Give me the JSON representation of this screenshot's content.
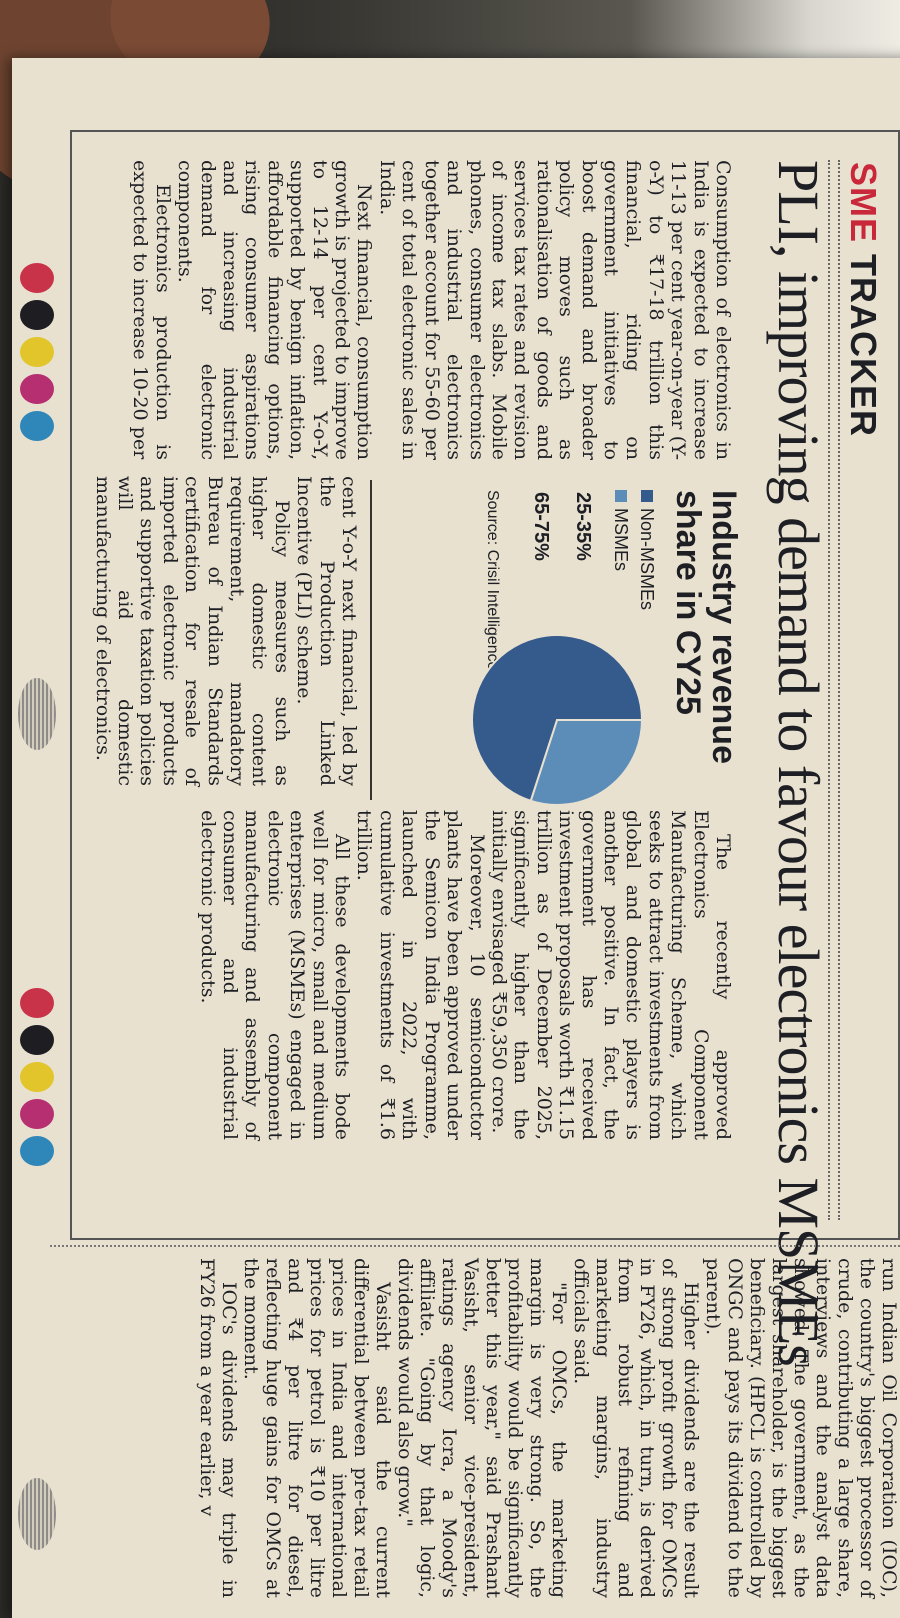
{
  "section_label": {
    "accent": "SME",
    "rest": " TRACKER"
  },
  "headline": "PLI, improving demand to favour electronics MSMEs",
  "column_a": [
    "Consumption of electronics in India is expected to increase 11-13 per cent year-on-year (Y-o-Y) to ₹17-18 trillion this financial, riding on government initiatives to boost demand and broader policy moves such as rationalisation of goods and services tax rates and revision of income tax slabs. Mobile phones, consumer electronics and industrial electronics together account for 55-60 per cent of total electronic sales in India.",
    "Next financial, consumption growth is projected to improve to 12-14 per cent Y-o-Y, supported by benign inflation, affordable financing options, rising consumer aspirations and increasing industrial demand for electronic components.",
    "Electronics production is expected to increase 10-20 per"
  ],
  "column_b": [
    "cent Y-o-Y next financial, led by the Production Linked Incentive (PLI) scheme.",
    "Policy measures such as higher domestic content requirement, mandatory Bureau of Indian Standards certification for resale of imported electronic products and supportive taxation policies will aid domestic manufacturing of electronics."
  ],
  "column_c": [
    "The recently approved Electronics Component Manufacturing Scheme, which seeks to attract investments from global and domestic players is another positive. In fact, the government has received investment proposals worth ₹1.15 trillion as of December 2025, significantly higher than the initially envisaged ₹59,350 crore.",
    "Moreover, 10 semiconductor plants have been approved under the Semicon India Programme, launched in 2022, with cumulative investments of ₹1.6 trillion.",
    "All these developments bode well for micro, small and medium enterprises (MSMEs) engaged in electronic component manufacturing and assembly of consumer and industrial electronic products."
  ],
  "chart_data": {
    "type": "pie",
    "title": "Industry revenue share in CY25",
    "series": [
      {
        "name": "Non-MSMEs",
        "label": "65-75%",
        "value": 70,
        "color": "#355a8c"
      },
      {
        "name": "MSMEs",
        "label": "25-35%",
        "value": 30,
        "color": "#5b8db8"
      }
    ],
    "source": "Source: Crisil Intelligence"
  },
  "adjacent_column": [
    "run Indian Oil Corporation (IOC), the country's biggest processor of crude, contributing a large share, interviews and the analyst data showed. The government, as the largest shareholder, is the biggest beneficiary. (HPCL is controlled by ONGC and pays its dividend to the parent).",
    "Higher dividends are the result of strong profit growth for OMCs in FY26, which, in turn, is derived from robust refining and marketing margins, industry officials said.",
    "\"For OMCs, the marketing margin is very strong. So, the profitability would be significantly better this year,\" said Prashant Vasisht, senior vice-president, ratings agency Icra, a Moody's affiliate. \"Going by that logic, dividends would also grow.\"",
    "Vasisht said the current differential between pre-tax retail prices in India and international prices for petrol is ₹10 per litre and ₹4 per litre for diesel, reflecting huge gains for OMCs at the moment.",
    "IOC's dividends may triple in FY26 from a year earlier, v"
  ]
}
